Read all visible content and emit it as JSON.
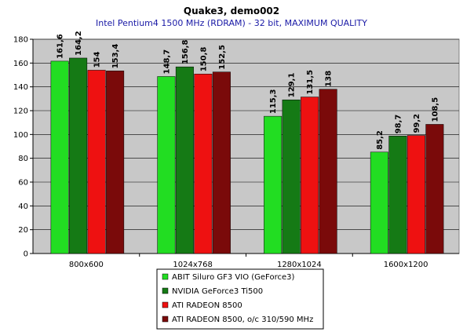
{
  "chart_data": {
    "type": "bar",
    "title": "Quake3, demo002",
    "subtitle": "Intel Pentium4 1500 MHz (RDRAM) - 32 bit, MAXIMUM QUALITY",
    "categories": [
      "800x600",
      "1024x768",
      "1280x1024",
      "1600x1200"
    ],
    "series": [
      {
        "name": "ABIT Siluro GF3 VIO (GeForce3)",
        "color": "#22dd22",
        "values": [
          161.6,
          148.7,
          115.3,
          85.2
        ],
        "labels": [
          "161,6",
          "148,7",
          "115,3",
          "85,2"
        ]
      },
      {
        "name": "NVIDIA GeForce3 Ti500",
        "color": "#157a15",
        "values": [
          164.2,
          156.8,
          129.1,
          98.7
        ],
        "labels": [
          "164,2",
          "156,8",
          "129,1",
          "98,7"
        ]
      },
      {
        "name": "ATI RADEON 8500",
        "color": "#ee1111",
        "values": [
          154,
          150.8,
          131.5,
          99.2
        ],
        "labels": [
          "154",
          "150,8",
          "131,5",
          "99,2"
        ]
      },
      {
        "name": "ATI RADEON 8500, o/c 310/590 MHz",
        "color": "#7a0a0a",
        "values": [
          153.4,
          152.5,
          138,
          108.5
        ],
        "labels": [
          "153,4",
          "152,5",
          "138",
          "108,5"
        ]
      }
    ],
    "ylim": [
      0,
      180
    ],
    "yticks": [
      "0",
      "20",
      "40",
      "60",
      "80",
      "100",
      "120",
      "140",
      "160",
      "180"
    ],
    "grid": true,
    "legend_position": "bottom-center",
    "plot_background": "#c8c8c8"
  }
}
